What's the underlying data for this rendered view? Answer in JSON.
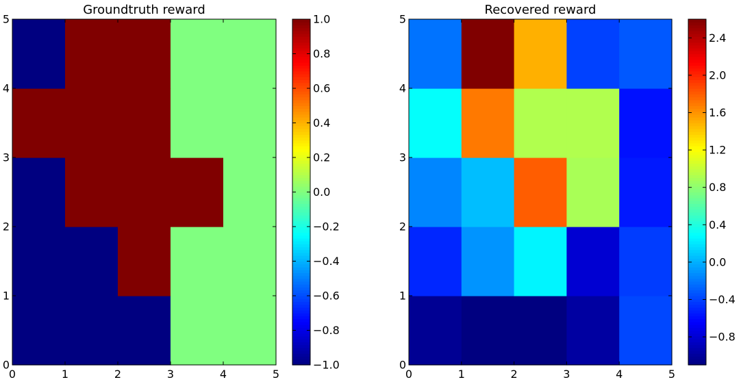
{
  "chart_data": [
    {
      "type": "heatmap",
      "title": "Groundtruth reward",
      "xlabel": "",
      "ylabel": "",
      "xlim": [
        0,
        5
      ],
      "ylim": [
        0,
        5
      ],
      "x_ticks": [
        "0",
        "1",
        "2",
        "3",
        "4",
        "5"
      ],
      "y_ticks": [
        "0",
        "1",
        "2",
        "3",
        "4",
        "5"
      ],
      "rows_bottom_to_top": [
        [
          -1,
          -1,
          -1,
          0,
          0
        ],
        [
          -1,
          -1,
          1,
          0,
          0
        ],
        [
          -1,
          1,
          1,
          1,
          0
        ],
        [
          1,
          1,
          1,
          0,
          0
        ],
        [
          -1,
          1,
          1,
          0,
          0
        ]
      ],
      "colormap": "jet",
      "clim": [
        -1.0,
        1.0
      ],
      "colorbar_ticks": [
        "−1.0",
        "−0.8",
        "−0.6",
        "−0.4",
        "−0.2",
        "0.0",
        "0.2",
        "0.4",
        "0.6",
        "0.8",
        "1.0"
      ],
      "colorbar_tick_values": [
        -1.0,
        -0.8,
        -0.6,
        -0.4,
        -0.2,
        0.0,
        0.2,
        0.4,
        0.6,
        0.8,
        1.0
      ],
      "grid": false
    },
    {
      "type": "heatmap",
      "title": "Recovered reward",
      "xlabel": "",
      "ylabel": "",
      "xlim": [
        0,
        5
      ],
      "ylim": [
        0,
        5
      ],
      "x_ticks": [
        "0",
        "1",
        "2",
        "3",
        "4",
        "5"
      ],
      "y_ticks": [
        "0",
        "1",
        "2",
        "3",
        "4",
        "5"
      ],
      "rows_bottom_to_top": [
        [
          -1.03,
          -1.1,
          -1.1,
          -0.98,
          -0.38
        ],
        [
          -0.5,
          -0.1,
          0.25,
          -0.8,
          -0.42
        ],
        [
          -0.15,
          0.05,
          1.8,
          0.9,
          -0.55
        ],
        [
          0.3,
          1.7,
          0.93,
          0.93,
          -0.58
        ],
        [
          -0.22,
          2.6,
          1.5,
          -0.4,
          -0.32
        ]
      ],
      "colormap": "jet",
      "clim": [
        -1.1,
        2.6
      ],
      "colorbar_ticks": [
        "−0.8",
        "−0.4",
        "0.0",
        "0.4",
        "0.8",
        "1.2",
        "1.6",
        "2.0",
        "2.4"
      ],
      "colorbar_tick_values": [
        -0.8,
        -0.4,
        0.0,
        0.4,
        0.8,
        1.2,
        1.6,
        2.0,
        2.4
      ],
      "grid": false
    }
  ]
}
